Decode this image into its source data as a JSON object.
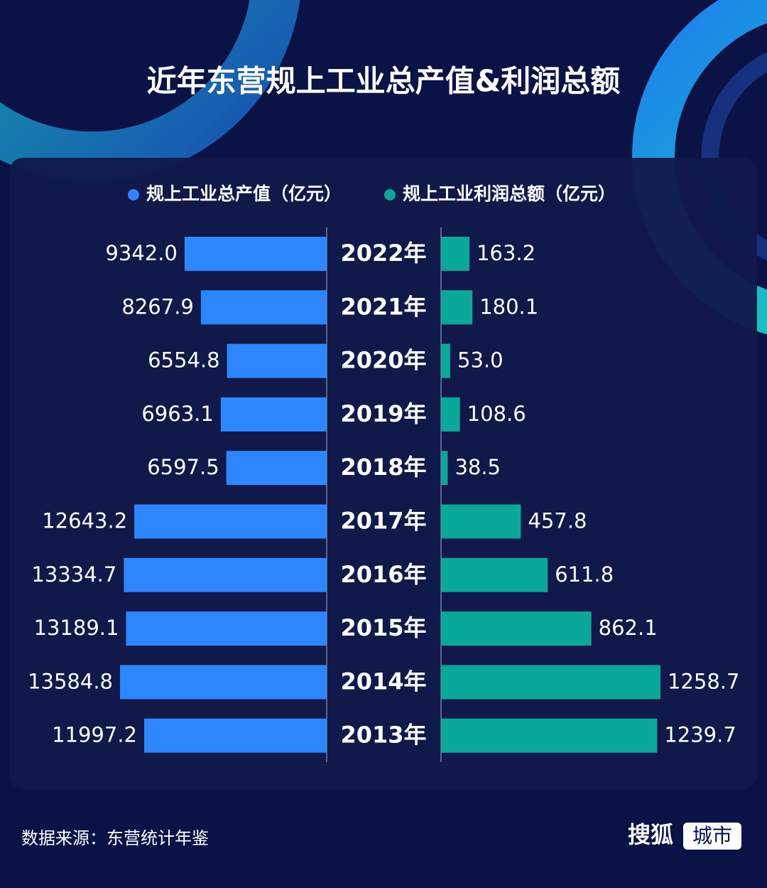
{
  "chart_data": {
    "type": "butterfly-bar",
    "title": "近年东营规上工业总产值&利润总额",
    "categories": [
      "2022年",
      "2021年",
      "2020年",
      "2019年",
      "2018年",
      "2017年",
      "2016年",
      "2015年",
      "2014年",
      "2013年"
    ],
    "series": [
      {
        "name": "规上工业总产值（亿元）",
        "color": "#2e86ff",
        "values": [
          9342.0,
          8267.9,
          6554.8,
          6963.1,
          6597.5,
          12643.2,
          13334.7,
          13189.1,
          13584.8,
          11997.2
        ],
        "value_labels": [
          "9342.0",
          "8267.9",
          "6554.8",
          "6963.1",
          "6597.5",
          "12643.2",
          "13334.7",
          "13189.1",
          "13584.8",
          "11997.2"
        ]
      },
      {
        "name": "规上工业利润总额（亿元）",
        "color": "#0aa89a",
        "values": [
          163.2,
          180.1,
          53.0,
          108.6,
          38.5,
          457.8,
          611.8,
          862.1,
          1258.7,
          1239.7
        ],
        "value_labels": [
          "163.2",
          "180.1",
          "53.0",
          "108.6",
          "38.5",
          "457.8",
          "611.8",
          "862.1",
          "1258.7",
          "1239.7"
        ]
      }
    ]
  },
  "footer": {
    "source": "数据来源：东营统计年鉴",
    "logo": "搜狐",
    "logo_tag": "城市"
  }
}
